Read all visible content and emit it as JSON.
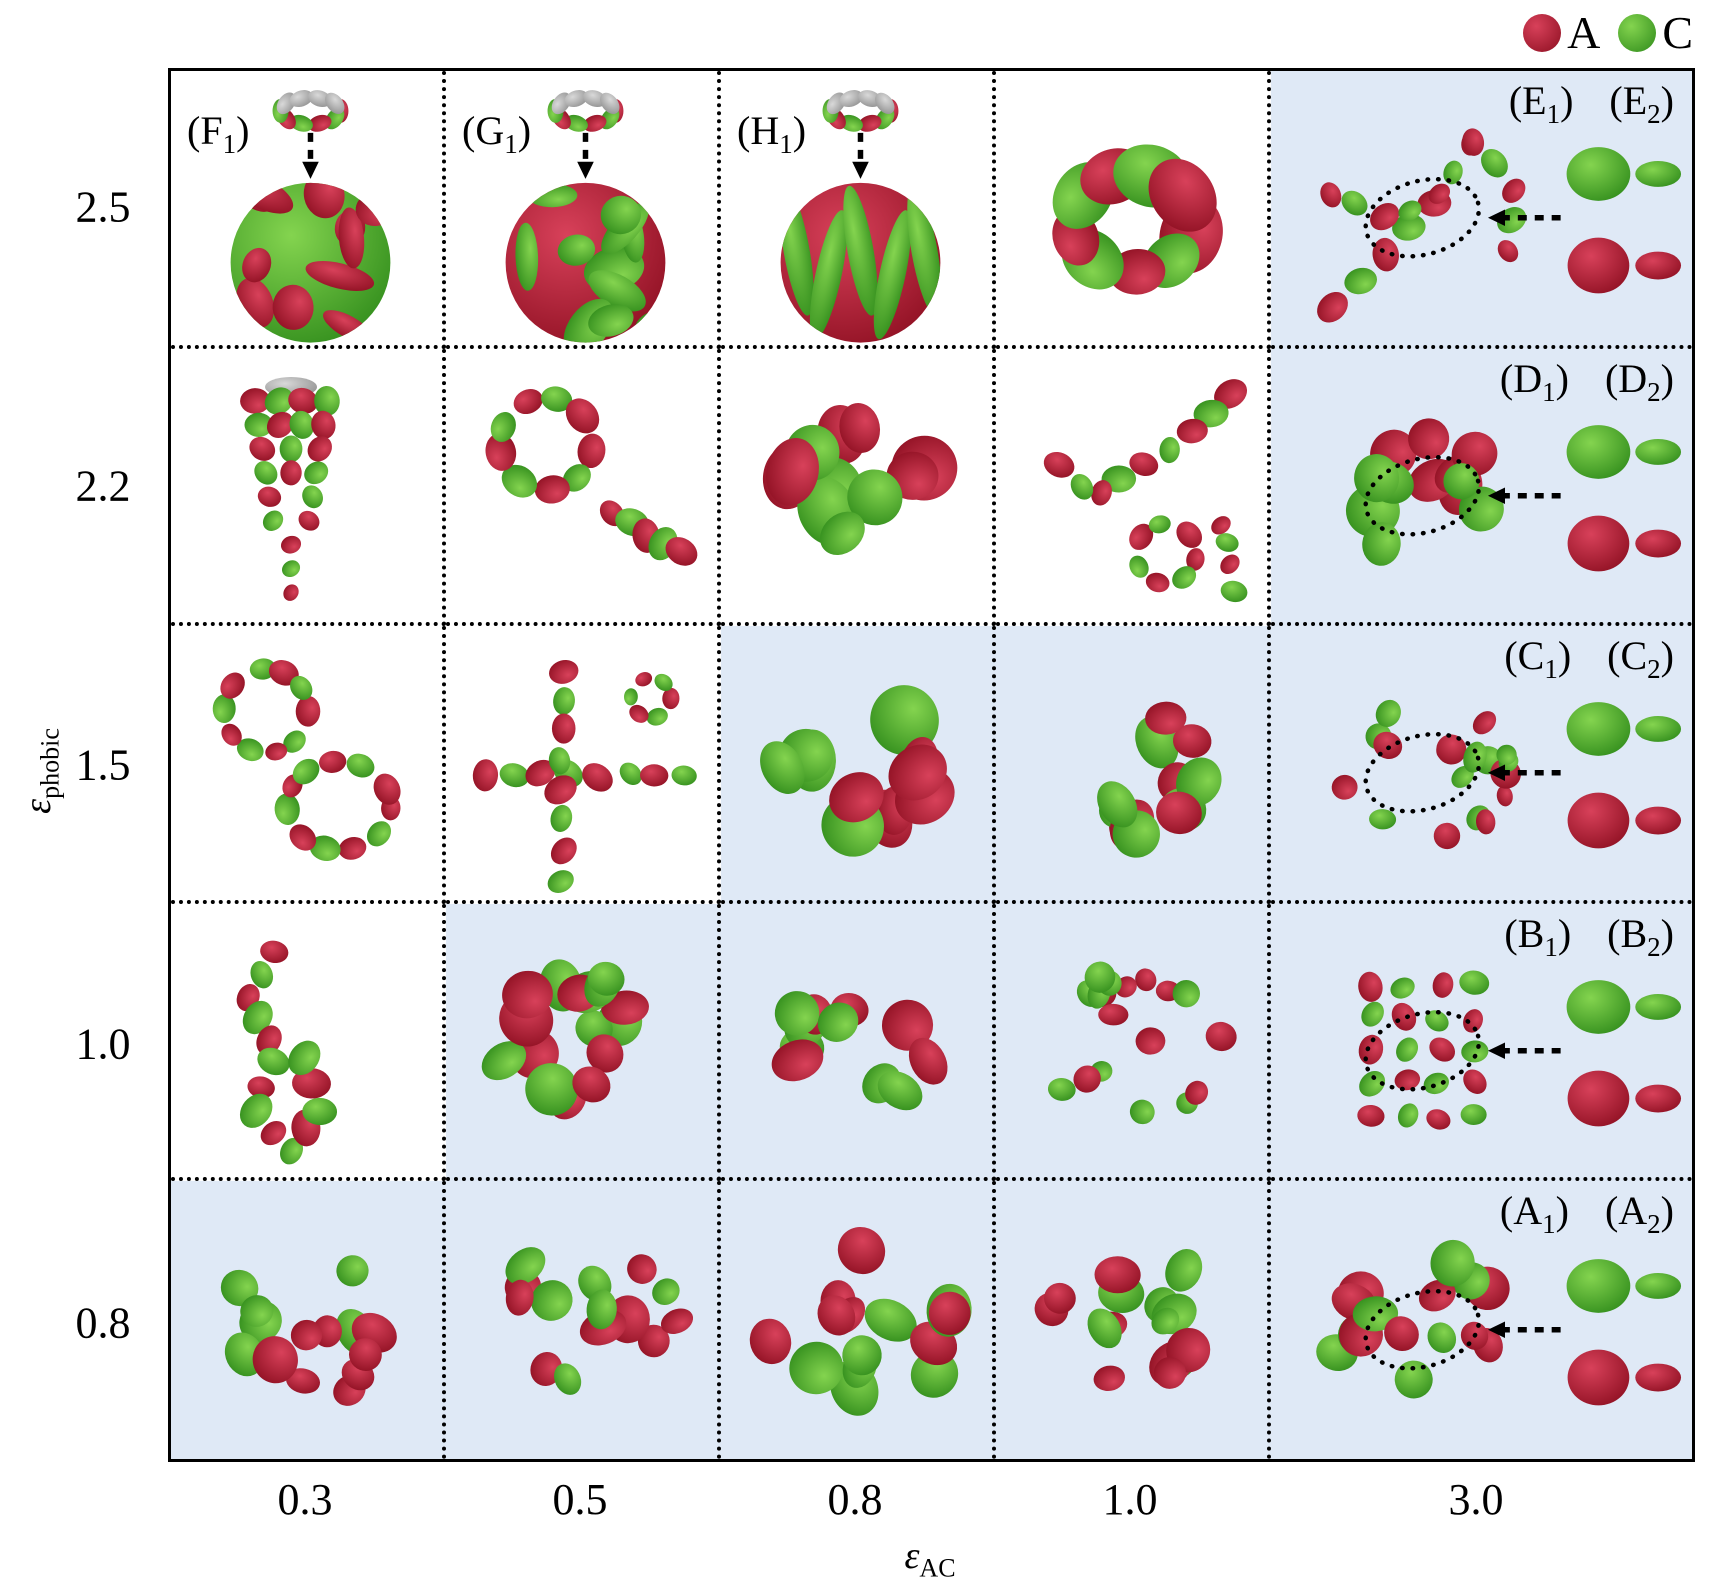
{
  "figure": {
    "legend": {
      "items": [
        {
          "label": "A",
          "color_key": "red"
        },
        {
          "label": "C",
          "color_key": "green"
        }
      ]
    },
    "x_axis": {
      "symbol": "ε",
      "subscript": "AC",
      "ticks": [
        "0.3",
        "0.5",
        "0.8",
        "1.0",
        "3.0"
      ]
    },
    "y_axis": {
      "symbol": "ε",
      "subscript": "phobic",
      "ticks": [
        "2.5",
        "2.2",
        "1.5",
        "1.0",
        "0.8"
      ]
    },
    "colors": {
      "red_hi": "#d8415a",
      "red_lo": "#8c0e20",
      "green_hi": "#84d44f",
      "green_lo": "#2e8a1a",
      "grey_hi": "#d9d9d9",
      "grey_lo": "#8e8e8e",
      "cell_blue": "#dfe9f6",
      "ink": "#000000"
    },
    "cells": [
      {
        "row": 0,
        "col": 0,
        "bg": "white",
        "kind": "sphere",
        "base": "g",
        "labels": [
          {
            "t": "F",
            "s": "1"
          }
        ],
        "label_pos": "tl",
        "seed": 101
      },
      {
        "row": 0,
        "col": 1,
        "bg": "white",
        "kind": "sphere",
        "base": "r",
        "labels": [
          {
            "t": "G",
            "s": "1"
          }
        ],
        "label_pos": "tl",
        "seed": 102
      },
      {
        "row": 0,
        "col": 2,
        "bg": "white",
        "kind": "sphere",
        "base": "r",
        "stripes": true,
        "labels": [
          {
            "t": "H",
            "s": "1"
          }
        ],
        "label_pos": "tl",
        "seed": 103
      },
      {
        "row": 0,
        "col": 3,
        "bg": "white",
        "kind": "torus",
        "seed": 104
      },
      {
        "row": 0,
        "col": 4,
        "bg": "blue",
        "kind": "branch",
        "labels": [
          {
            "t": "E",
            "s": "1"
          },
          {
            "t": "E",
            "s": "2"
          }
        ],
        "label_pos": "tr",
        "inset": true,
        "seed": 105
      },
      {
        "row": 1,
        "col": 0,
        "bg": "white",
        "kind": "cone",
        "seed": 111
      },
      {
        "row": 1,
        "col": 1,
        "bg": "white",
        "kind": "ringpair",
        "seed": 112
      },
      {
        "row": 1,
        "col": 2,
        "bg": "white",
        "kind": "bigcluster",
        "seed": 113
      },
      {
        "row": 1,
        "col": 3,
        "bg": "white",
        "kind": "chaincurve",
        "seed": 114
      },
      {
        "row": 1,
        "col": 4,
        "bg": "blue",
        "kind": "medcluster",
        "labels": [
          {
            "t": "D",
            "s": "1"
          },
          {
            "t": "D",
            "s": "2"
          }
        ],
        "label_pos": "tr",
        "inset": true,
        "seed": 115
      },
      {
        "row": 2,
        "col": 0,
        "bg": "white",
        "kind": "doublering",
        "seed": 121
      },
      {
        "row": 2,
        "col": 1,
        "bg": "white",
        "kind": "cross",
        "seed": 122
      },
      {
        "row": 2,
        "col": 2,
        "bg": "blue",
        "kind": "bigcluster",
        "seed": 123
      },
      {
        "row": 2,
        "col": 3,
        "bg": "blue",
        "kind": "medcluster",
        "seed": 124
      },
      {
        "row": 2,
        "col": 4,
        "bg": "blue",
        "kind": "smallscatter",
        "labels": [
          {
            "t": "C",
            "s": "1"
          },
          {
            "t": "C",
            "s": "2"
          }
        ],
        "label_pos": "tr",
        "inset": true,
        "seed": 125
      },
      {
        "row": 3,
        "col": 0,
        "bg": "white",
        "kind": "zigzag",
        "seed": 131
      },
      {
        "row": 3,
        "col": 1,
        "bg": "blue",
        "kind": "densecluster",
        "seed": 132
      },
      {
        "row": 3,
        "col": 2,
        "bg": "blue",
        "kind": "medcluster",
        "seed": 133
      },
      {
        "row": 3,
        "col": 3,
        "bg": "blue",
        "kind": "smallscatter",
        "seed": 134
      },
      {
        "row": 3,
        "col": 4,
        "bg": "blue",
        "kind": "lattice",
        "labels": [
          {
            "t": "B",
            "s": "1"
          },
          {
            "t": "B",
            "s": "2"
          }
        ],
        "label_pos": "tr",
        "inset": true,
        "seed": 135
      },
      {
        "row": 4,
        "col": 0,
        "bg": "blue",
        "kind": "scatter",
        "seed": 141
      },
      {
        "row": 4,
        "col": 1,
        "bg": "blue",
        "kind": "scatter",
        "seed": 142
      },
      {
        "row": 4,
        "col": 2,
        "bg": "blue",
        "kind": "bigscatter",
        "seed": 143
      },
      {
        "row": 4,
        "col": 3,
        "bg": "blue",
        "kind": "scatter",
        "seed": 144
      },
      {
        "row": 4,
        "col": 4,
        "bg": "blue",
        "kind": "scatter",
        "labels": [
          {
            "t": "A",
            "s": "1"
          },
          {
            "t": "A",
            "s": "2"
          }
        ],
        "label_pos": "tr",
        "inset": true,
        "seed": 145
      }
    ]
  },
  "chart_data": {
    "type": "heatmap",
    "title": "",
    "xlabel": "ε_AC",
    "ylabel": "ε_phobic",
    "x_categories": [
      "0.3",
      "0.5",
      "0.8",
      "1.0",
      "3.0"
    ],
    "y_categories": [
      "2.5",
      "2.2",
      "1.5",
      "1.0",
      "0.8"
    ],
    "cell_shaded_blue": [
      [
        0,
        0,
        0,
        0,
        1
      ],
      [
        0,
        0,
        0,
        0,
        1
      ],
      [
        0,
        0,
        1,
        1,
        1
      ],
      [
        0,
        1,
        1,
        1,
        1
      ],
      [
        1,
        1,
        1,
        1,
        1
      ]
    ],
    "panel_labels": [
      {
        "label": "(F1)",
        "y": "2.5",
        "x": "0.3"
      },
      {
        "label": "(G1)",
        "y": "2.5",
        "x": "0.5"
      },
      {
        "label": "(H1)",
        "y": "2.5",
        "x": "0.8"
      },
      {
        "label": "(E1) (E2)",
        "y": "2.5",
        "x": "3.0"
      },
      {
        "label": "(D1) (D2)",
        "y": "2.2",
        "x": "3.0"
      },
      {
        "label": "(C1) (C2)",
        "y": "1.5",
        "x": "3.0"
      },
      {
        "label": "(B1) (B2)",
        "y": "1.0",
        "x": "3.0"
      },
      {
        "label": "(A1) (A2)",
        "y": "0.8",
        "x": "3.0"
      }
    ],
    "legend": [
      {
        "label": "A",
        "color": "red"
      },
      {
        "label": "C",
        "color": "green"
      }
    ]
  }
}
